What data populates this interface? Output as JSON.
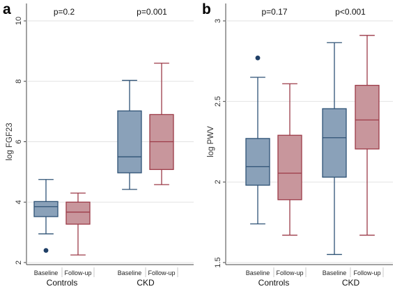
{
  "chart_data": [
    {
      "type": "box",
      "panel": "a",
      "ylabel": "log FGF23",
      "ylim": [
        2,
        10
      ],
      "yticks": [
        2,
        4,
        6,
        8,
        10
      ],
      "grid": true,
      "groups": [
        {
          "name": "Controls",
          "pvalue": "p=0.2"
        },
        {
          "name": "CKD",
          "pvalue": "p=0.001"
        }
      ],
      "boxes": [
        {
          "group": "Controls",
          "label": "Baseline",
          "color": "#8aa1b9",
          "edge": "#2e5275",
          "whisker_low": 2.95,
          "q1": 3.52,
          "median": 3.85,
          "q3": 4.02,
          "whisker_high": 4.75,
          "outliers": [
            2.4
          ]
        },
        {
          "group": "Controls",
          "label": "Follow-up",
          "color": "#c8969c",
          "edge": "#9c3a47",
          "whisker_low": 2.25,
          "q1": 3.27,
          "median": 3.67,
          "q3": 4.0,
          "whisker_high": 4.3,
          "outliers": []
        },
        {
          "group": "CKD",
          "label": "Baseline",
          "color": "#8aa1b9",
          "edge": "#2e5275",
          "whisker_low": 4.42,
          "q1": 4.97,
          "median": 5.5,
          "q3": 7.02,
          "whisker_high": 8.03,
          "outliers": []
        },
        {
          "group": "CKD",
          "label": "Follow-up",
          "color": "#c8969c",
          "edge": "#9c3a47",
          "whisker_low": 4.58,
          "q1": 5.08,
          "median": 6.0,
          "q3": 6.9,
          "whisker_high": 8.6,
          "outliers": []
        }
      ]
    },
    {
      "type": "box",
      "panel": "b",
      "ylabel": "log PWV",
      "ylim": [
        1.5,
        3
      ],
      "yticks": [
        1.5,
        2,
        2.5,
        3
      ],
      "grid": true,
      "groups": [
        {
          "name": "Controls",
          "pvalue": "p=0.17"
        },
        {
          "name": "CKD",
          "pvalue": "p<0.001"
        }
      ],
      "boxes": [
        {
          "group": "Controls",
          "label": "Baseline",
          "color": "#8aa1b9",
          "edge": "#2e5275",
          "whisker_low": 1.74,
          "q1": 1.98,
          "median": 2.095,
          "q3": 2.27,
          "whisker_high": 2.65,
          "outliers": [
            2.77
          ]
        },
        {
          "group": "Controls",
          "label": "Follow-up",
          "color": "#c8969c",
          "edge": "#9c3a47",
          "whisker_low": 1.67,
          "q1": 1.89,
          "median": 2.055,
          "q3": 2.29,
          "whisker_high": 2.61,
          "outliers": []
        },
        {
          "group": "CKD",
          "label": "Baseline",
          "color": "#8aa1b9",
          "edge": "#2e5275",
          "whisker_low": 1.55,
          "q1": 2.03,
          "median": 2.275,
          "q3": 2.455,
          "whisker_high": 2.865,
          "outliers": []
        },
        {
          "group": "CKD",
          "label": "Follow-up",
          "color": "#c8969c",
          "edge": "#9c3a47",
          "whisker_low": 1.67,
          "q1": 2.205,
          "median": 2.385,
          "q3": 2.6,
          "whisker_high": 2.91,
          "outliers": []
        }
      ]
    }
  ],
  "colors": {
    "outlier": "#1f3f66",
    "grid": "#e2e2e2",
    "axis": "#444444"
  }
}
